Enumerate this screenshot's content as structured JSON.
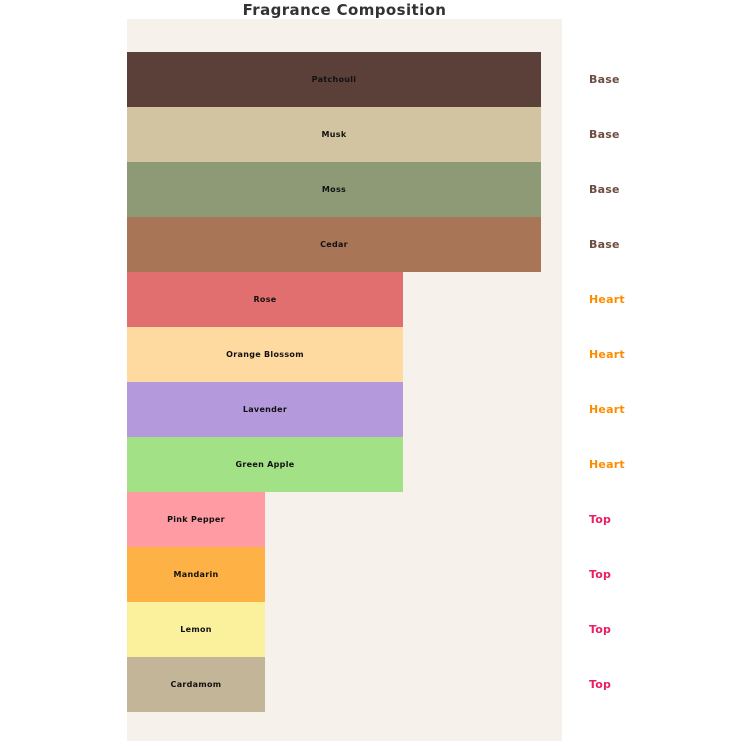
{
  "chart_data": {
    "type": "bar",
    "orientation": "horizontal",
    "title": "Fragrance Composition",
    "xlabel": "",
    "ylabel": "",
    "x_axis": {
      "min": 0,
      "max": 3.15,
      "ticks_visible": false
    },
    "grid": false,
    "legend": "none",
    "page_background": "#FFFFFF",
    "plot_background": "#F6F1EA",
    "title_color": "#333333",
    "bar_label_color": "#111111",
    "layer_label_colors": {
      "Base": "#6D4C41",
      "Heart": "#FF8C00",
      "Top": "#E91E63"
    },
    "bars": [
      {
        "note": "Patchouli",
        "layer": "Base",
        "value": 3,
        "color": "#5A4038"
      },
      {
        "note": "Musk",
        "layer": "Base",
        "value": 3,
        "color": "#D2C4A1"
      },
      {
        "note": "Moss",
        "layer": "Base",
        "value": 3,
        "color": "#8E9A76"
      },
      {
        "note": "Cedar",
        "layer": "Base",
        "value": 3,
        "color": "#A97557"
      },
      {
        "note": "Rose",
        "layer": "Heart",
        "value": 2,
        "color": "#E26F6F"
      },
      {
        "note": "Orange Blossom",
        "layer": "Heart",
        "value": 2,
        "color": "#FED9A0"
      },
      {
        "note": "Lavender",
        "layer": "Heart",
        "value": 2,
        "color": "#B49ADC"
      },
      {
        "note": "Green Apple",
        "layer": "Heart",
        "value": 2,
        "color": "#A3E187"
      },
      {
        "note": "Pink Pepper",
        "layer": "Top",
        "value": 1,
        "color": "#FE9BA3"
      },
      {
        "note": "Mandarin",
        "layer": "Top",
        "value": 1,
        "color": "#FEB246"
      },
      {
        "note": "Lemon",
        "layer": "Top",
        "value": 1,
        "color": "#FBF19D"
      },
      {
        "note": "Cardamom",
        "layer": "Top",
        "value": 1,
        "color": "#C3B698"
      }
    ]
  }
}
